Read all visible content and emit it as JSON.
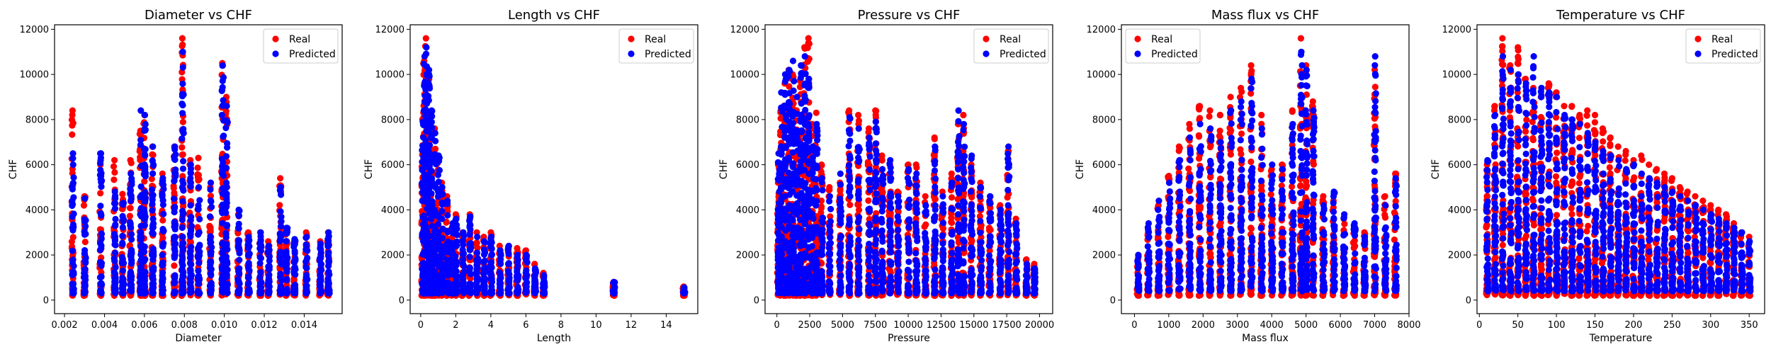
{
  "colors": {
    "real": "#ff0000",
    "predicted": "#0000ff",
    "axis": "#000000",
    "background": "#ffffff"
  },
  "legend_labels": {
    "real": "Real",
    "predicted": "Predicted"
  },
  "chart_data": [
    {
      "type": "scatter",
      "title": "Diameter vs CHF",
      "xlabel": "Diameter",
      "ylabel": "CHF",
      "xlim": [
        0.0015,
        0.0159
      ],
      "ylim": [
        -600,
        12200
      ],
      "xticks": [
        0.002,
        0.004,
        0.006,
        0.008,
        0.01,
        0.012,
        0.014
      ],
      "xtick_labels": [
        "0.002",
        "0.004",
        "0.006",
        "0.008",
        "0.010",
        "0.012",
        "0.014"
      ],
      "yticks": [
        0,
        2000,
        4000,
        6000,
        8000,
        10000,
        12000
      ],
      "ytick_labels": [
        "0",
        "2000",
        "4000",
        "6000",
        "8000",
        "10000",
        "12000"
      ],
      "legend": "top-right",
      "x_columns": [
        0.0024,
        0.003,
        0.0038,
        0.0045,
        0.0049,
        0.0053,
        0.0058,
        0.006,
        0.0064,
        0.0069,
        0.0075,
        0.0079,
        0.0083,
        0.0087,
        0.0093,
        0.0099,
        0.0101,
        0.0107,
        0.0112,
        0.0118,
        0.0122,
        0.0128,
        0.0131,
        0.0135,
        0.0141,
        0.0148,
        0.0152
      ],
      "real_max": [
        8400,
        4600,
        6000,
        6200,
        4700,
        6200,
        7500,
        8200,
        6800,
        5600,
        6800,
        11600,
        6200,
        6300,
        5000,
        10500,
        9000,
        3800,
        3000,
        3000,
        2600,
        5400,
        3000,
        2600,
        3000,
        2600,
        3000
      ],
      "pred_max": [
        6500,
        4500,
        6500,
        4800,
        4300,
        5600,
        8400,
        8200,
        6800,
        5400,
        6800,
        11000,
        6000,
        5000,
        5200,
        10400,
        8600,
        4000,
        2800,
        3000,
        2400,
        5000,
        3200,
        2700,
        2800,
        2500,
        3000
      ],
      "series": [
        {
          "name": "Real",
          "y_range": [
            200,
            11600
          ]
        },
        {
          "name": "Predicted",
          "y_range": [
            300,
            11000
          ]
        }
      ]
    },
    {
      "type": "scatter",
      "title": "Length vs CHF",
      "xlabel": "Length",
      "ylabel": "CHF",
      "xlim": [
        -0.6,
        15.8
      ],
      "ylim": [
        -600,
        12200
      ],
      "xticks": [
        0,
        2,
        4,
        6,
        8,
        10,
        12,
        14
      ],
      "xtick_labels": [
        "0",
        "2",
        "4",
        "6",
        "8",
        "10",
        "12",
        "14"
      ],
      "yticks": [
        0,
        2000,
        4000,
        6000,
        8000,
        10000,
        12000
      ],
      "ytick_labels": [
        "0",
        "2000",
        "4000",
        "6000",
        "8000",
        "10000",
        "12000"
      ],
      "legend": "top-right",
      "x_columns": [
        0.1,
        0.2,
        0.3,
        0.45,
        0.6,
        0.8,
        1.0,
        1.2,
        1.5,
        1.8,
        2.0,
        2.4,
        2.8,
        3.2,
        3.6,
        4.0,
        4.5,
        5.0,
        5.5,
        6.0,
        6.5,
        7.0,
        11.0,
        15.0
      ],
      "real_max": [
        8000,
        10600,
        11600,
        10000,
        8200,
        7600,
        6200,
        5200,
        4600,
        3200,
        3800,
        3000,
        3800,
        3000,
        2800,
        3000,
        2400,
        2200,
        2300,
        2200,
        1600,
        1200,
        800,
        600
      ],
      "pred_max": [
        7900,
        10800,
        11200,
        10200,
        8400,
        7400,
        6400,
        5000,
        4400,
        3400,
        3600,
        3000,
        3700,
        2800,
        2600,
        2800,
        2200,
        2400,
        2000,
        2000,
        1400,
        1100,
        800,
        550
      ],
      "series": [
        {
          "name": "Real",
          "y_range": [
            200,
            11600
          ]
        },
        {
          "name": "Predicted",
          "y_range": [
            300,
            11200
          ]
        }
      ]
    },
    {
      "type": "scatter",
      "title": "Pressure vs CHF",
      "xlabel": "Pressure",
      "ylabel": "CHF",
      "xlim": [
        -900,
        21000
      ],
      "ylim": [
        -600,
        12200
      ],
      "xticks": [
        0,
        2500,
        5000,
        7500,
        10000,
        12500,
        15000,
        17500,
        20000
      ],
      "xtick_labels": [
        "0",
        "2500",
        "5000",
        "7500",
        "10000",
        "12500",
        "15000",
        "17500",
        "20000"
      ],
      "yticks": [
        0,
        2000,
        4000,
        6000,
        8000,
        10000,
        12000
      ],
      "ytick_labels": [
        "0",
        "2000",
        "4000",
        "6000",
        "8000",
        "10000",
        "12000"
      ],
      "legend": "top-right",
      "x_columns": [
        100,
        300,
        600,
        900,
        1200,
        1500,
        1800,
        2100,
        2400,
        2700,
        3000,
        3400,
        4000,
        4800,
        5500,
        6200,
        7000,
        7500,
        8000,
        8600,
        9200,
        10000,
        10600,
        11300,
        12000,
        12600,
        13300,
        13800,
        14200,
        14800,
        15500,
        16200,
        17000,
        17600,
        18200,
        19000,
        19600
      ],
      "real_max": [
        6000,
        8400,
        9600,
        10200,
        10000,
        8400,
        9800,
        11200,
        11600,
        7800,
        8300,
        6000,
        5000,
        5200,
        8400,
        8200,
        7600,
        8400,
        6400,
        6000,
        4800,
        6000,
        6000,
        4600,
        7200,
        4800,
        5600,
        7800,
        8200,
        6000,
        5200,
        4400,
        4200,
        6600,
        3600,
        1800,
        1600
      ],
      "pred_max": [
        6500,
        9200,
        10000,
        10200,
        10600,
        9000,
        10400,
        10800,
        9800,
        6800,
        7800,
        5400,
        4600,
        5600,
        8100,
        7600,
        7200,
        7900,
        5800,
        6200,
        4600,
        5800,
        5600,
        4200,
        6800,
        4600,
        5200,
        8400,
        7800,
        6400,
        5000,
        4600,
        4000,
        6800,
        3400,
        1600,
        1400
      ],
      "series": [
        {
          "name": "Real",
          "y_range": [
            200,
            11600
          ]
        },
        {
          "name": "Predicted",
          "y_range": [
            300,
            10800
          ]
        }
      ]
    },
    {
      "type": "scatter",
      "title": "Mass flux vs CHF",
      "xlabel": "Mass flux",
      "ylabel": "CHF",
      "xlim": [
        -380,
        8000
      ],
      "ylim": [
        -600,
        12200
      ],
      "xticks": [
        0,
        1000,
        2000,
        3000,
        4000,
        5000,
        6000,
        7000,
        8000
      ],
      "xtick_labels": [
        "0",
        "1000",
        "2000",
        "3000",
        "4000",
        "5000",
        "6000",
        "7000",
        "8000"
      ],
      "yticks": [
        0,
        2000,
        4000,
        6000,
        8000,
        10000,
        12000
      ],
      "ytick_labels": [
        "0",
        "2000",
        "4000",
        "6000",
        "8000",
        "10000",
        "12000"
      ],
      "legend": "top-left",
      "x_columns": [
        100,
        400,
        700,
        1000,
        1300,
        1600,
        1900,
        2200,
        2500,
        2800,
        3100,
        3400,
        3700,
        4000,
        4300,
        4600,
        4850,
        5000,
        5200,
        5500,
        5800,
        6100,
        6400,
        6700,
        7000,
        7300,
        7600
      ],
      "real_max": [
        1800,
        3000,
        4200,
        5500,
        6800,
        7800,
        8600,
        8400,
        8200,
        9000,
        9400,
        10400,
        8200,
        5800,
        6000,
        8400,
        11600,
        10400,
        8800,
        4600,
        4400,
        3600,
        3200,
        3000,
        10200,
        4600,
        5600
      ],
      "pred_max": [
        2000,
        3400,
        4400,
        5200,
        6200,
        7200,
        7800,
        7600,
        7000,
        8400,
        8800,
        9800,
        7600,
        6000,
        5800,
        7800,
        11000,
        10200,
        8400,
        4200,
        4800,
        3800,
        3400,
        2800,
        10800,
        4200,
        5400
      ],
      "series": [
        {
          "name": "Real",
          "y_range": [
            200,
            11600
          ]
        },
        {
          "name": "Predicted",
          "y_range": [
            400,
            11000
          ]
        }
      ]
    },
    {
      "type": "scatter",
      "title": "Temperature vs CHF",
      "xlabel": "Temperature",
      "ylabel": "CHF",
      "xlim": [
        -3,
        370
      ],
      "ylim": [
        -600,
        12200
      ],
      "xticks": [
        0,
        50,
        100,
        150,
        200,
        250,
        300,
        350
      ],
      "xtick_labels": [
        "0",
        "50",
        "100",
        "150",
        "200",
        "250",
        "300",
        "350"
      ],
      "yticks": [
        0,
        2000,
        4000,
        6000,
        8000,
        10000,
        12000
      ],
      "ytick_labels": [
        "0",
        "2000",
        "4000",
        "6000",
        "8000",
        "10000",
        "12000"
      ],
      "legend": "top-right",
      "x_columns": [
        10,
        20,
        30,
        40,
        50,
        60,
        70,
        80,
        90,
        100,
        110,
        120,
        130,
        140,
        150,
        160,
        170,
        180,
        190,
        200,
        210,
        220,
        230,
        240,
        250,
        260,
        270,
        280,
        290,
        300,
        310,
        320,
        330,
        340,
        350
      ],
      "real_max": [
        6000,
        8600,
        11600,
        10400,
        11200,
        9800,
        9400,
        9000,
        9600,
        9200,
        8600,
        8600,
        8200,
        8400,
        8200,
        7600,
        7200,
        6800,
        6600,
        6200,
        6400,
        6000,
        5800,
        5600,
        5400,
        5000,
        4800,
        4600,
        4400,
        4200,
        4000,
        3800,
        3400,
        3000,
        2800
      ],
      "pred_max": [
        6200,
        8200,
        10800,
        10200,
        10000,
        9600,
        10800,
        9400,
        9200,
        9000,
        8200,
        8000,
        7800,
        7400,
        7000,
        6600,
        6400,
        6200,
        5800,
        6000,
        5600,
        5400,
        5200,
        5000,
        4800,
        4600,
        4400,
        4200,
        4000,
        3800,
        3600,
        3400,
        3200,
        3000,
        2600
      ],
      "series": [
        {
          "name": "Real",
          "y_range": [
            200,
            11600
          ]
        },
        {
          "name": "Predicted",
          "y_range": [
            400,
            10800
          ]
        }
      ]
    }
  ]
}
